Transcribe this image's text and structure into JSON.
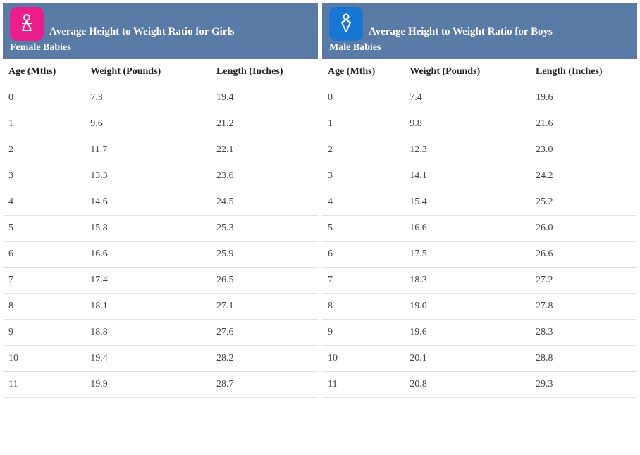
{
  "layout": {
    "panels_side_by_side": true,
    "header_bg": "#5a7ba5",
    "header_text_color": "#ffffff",
    "row_border_color": "#e2e2e2",
    "header_border_color": "#d5d5d5",
    "body_text_color": "#444444",
    "font_family": "Georgia, serif",
    "girl_icon_bg": "#e91e8c",
    "boy_icon_bg": "#1976d2",
    "icon_fg": "#ffffff"
  },
  "columns": [
    "Age (Mths)",
    "Weight (Pounds)",
    "Length (Inches)"
  ],
  "girls": {
    "title": "Average Height to Weight Ratio for Girls",
    "subtitle": "Female Babies",
    "rows": [
      [
        "0",
        "7.3",
        "19.4"
      ],
      [
        "1",
        "9.6",
        "21.2"
      ],
      [
        "2",
        "11.7",
        "22.1"
      ],
      [
        "3",
        "13.3",
        "23.6"
      ],
      [
        "4",
        "14.6",
        "24.5"
      ],
      [
        "5",
        "15.8",
        "25.3"
      ],
      [
        "6",
        "16.6",
        "25.9"
      ],
      [
        "7",
        "17.4",
        "26.5"
      ],
      [
        "8",
        "18.1",
        "27.1"
      ],
      [
        "9",
        "18.8",
        "27.6"
      ],
      [
        "10",
        "19.4",
        "28.2"
      ],
      [
        "11",
        "19.9",
        "28.7"
      ]
    ]
  },
  "boys": {
    "title": "Average Height to Weight Ratio for Boys",
    "subtitle": "Male Babies",
    "rows": [
      [
        "0",
        "7.4",
        "19.6"
      ],
      [
        "1",
        "9.8",
        "21.6"
      ],
      [
        "2",
        "12.3",
        "23.0"
      ],
      [
        "3",
        "14.1",
        "24.2"
      ],
      [
        "4",
        "15.4",
        "25.2"
      ],
      [
        "5",
        "16.6",
        "26.0"
      ],
      [
        "6",
        "17.5",
        "26.6"
      ],
      [
        "7",
        "18.3",
        "27.2"
      ],
      [
        "8",
        "19.0",
        "27.8"
      ],
      [
        "9",
        "19.6",
        "28.3"
      ],
      [
        "10",
        "20.1",
        "28.8"
      ],
      [
        "11",
        "20.8",
        "29.3"
      ]
    ]
  }
}
